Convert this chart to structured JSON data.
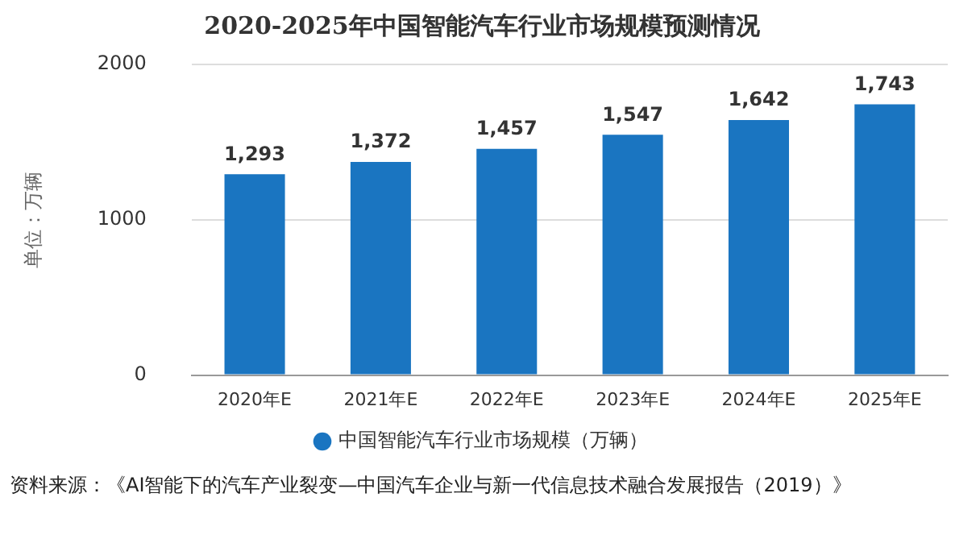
{
  "chart_data": {
    "type": "bar",
    "title": "2020-2025年中国智能汽车行业市场规模预测情况",
    "ylabel": "单位：万辆",
    "categories": [
      "2020年E",
      "2021年E",
      "2022年E",
      "2023年E",
      "2024年E",
      "2025年E"
    ],
    "series": [
      {
        "name": "中国智能汽车行业市场规模（万辆）",
        "color": "#1a75c1",
        "values": [
          1293,
          1372,
          1457,
          1547,
          1642,
          1743
        ],
        "value_labels": [
          "1,293",
          "1,372",
          "1,457",
          "1,547",
          "1,642",
          "1,743"
        ]
      }
    ],
    "ylim": [
      0,
      2000
    ],
    "yticks": [
      0,
      1000,
      2000
    ],
    "grid": "y",
    "legend": "bottom",
    "annotations": [
      "资料来源：《AI智能下的汽车产业裂变—中国汽车企业与新一代信息技术融合发展报告（2019）》"
    ]
  }
}
